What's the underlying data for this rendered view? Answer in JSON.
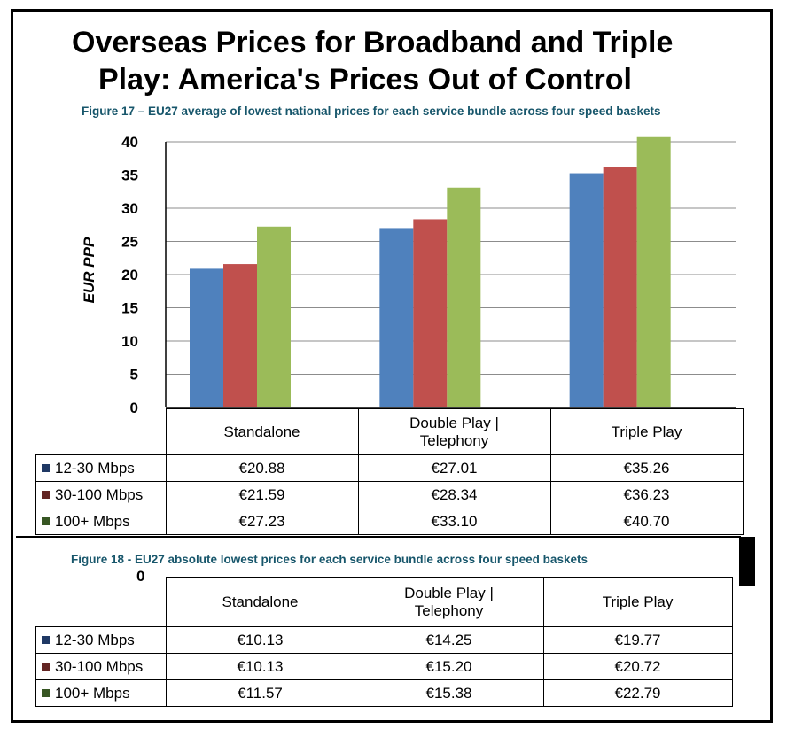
{
  "title_line1": "Overseas Prices for Broadband and Triple",
  "title_line2": "Play: America's Prices Out of Control",
  "colors": {
    "s1": "#4f81bd",
    "s2": "#c0504d",
    "s3": "#9bbb59",
    "title": "#17566b",
    "sw1": "#1f3864",
    "sw2": "#632523",
    "sw3": "#375623"
  },
  "chart_data": [
    {
      "type": "bar",
      "title": "Figure 17 – EU27 average of lowest national prices for each service bundle across four speed baskets",
      "ylabel": "EUR PPP",
      "ylim": [
        0,
        40
      ],
      "yticks": [
        "0",
        "5",
        "10",
        "15",
        "20",
        "25",
        "30",
        "35",
        "40"
      ],
      "categories": [
        "Standalone",
        "Double Play | Telephony",
        "Triple Play"
      ],
      "series": [
        {
          "name": "12-30 Mbps",
          "values": [
            20.88,
            27.01,
            35.26
          ],
          "labels": [
            "€20.88",
            "€27.01",
            "€35.26"
          ]
        },
        {
          "name": "30-100 Mbps",
          "values": [
            21.59,
            28.34,
            36.23
          ],
          "labels": [
            "€21.59",
            "€28.34",
            "€36.23"
          ]
        },
        {
          "name": "100+ Mbps",
          "values": [
            27.23,
            33.1,
            40.7
          ],
          "labels": [
            "€27.23",
            "€33.10",
            "€40.70"
          ]
        }
      ]
    },
    {
      "type": "table",
      "title": "Figure 18 - EU27 absolute lowest prices for each service bundle across four speed baskets",
      "zero_label": "0",
      "categories": [
        "Standalone",
        "Double Play | Telephony",
        "Triple Play"
      ],
      "series": [
        {
          "name": "12-30 Mbps",
          "labels": [
            "€10.13",
            "€14.25",
            "€19.77"
          ]
        },
        {
          "name": "30-100 Mbps",
          "labels": [
            "€10.13",
            "€15.20",
            "€20.72"
          ]
        },
        {
          "name": "100+ Mbps",
          "labels": [
            "€11.57",
            "€15.38",
            "€22.79"
          ]
        }
      ]
    }
  ],
  "header_labels": {
    "standalone": "Standalone",
    "double_play_line1": "Double Play |",
    "double_play_line2": "Telephony",
    "triple_play": "Triple Play"
  }
}
